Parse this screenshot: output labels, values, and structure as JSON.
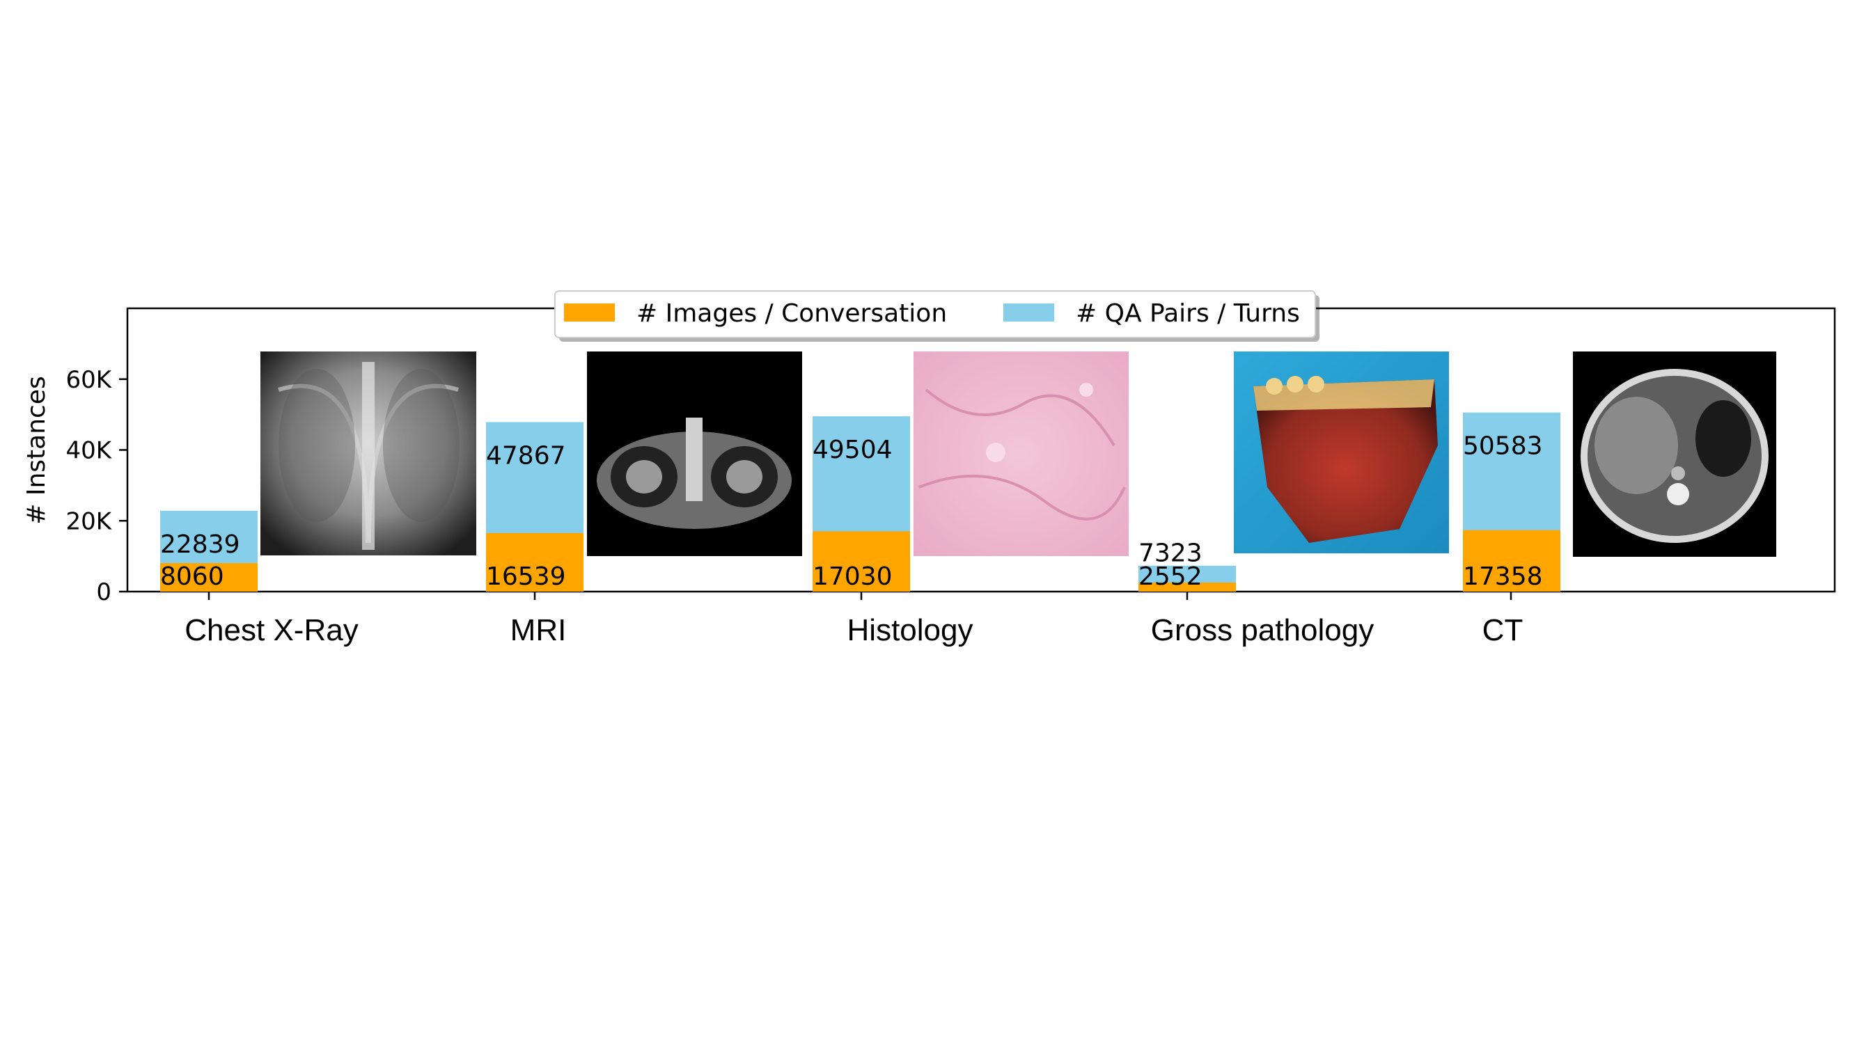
{
  "chart_data": {
    "type": "bar",
    "stacked": false,
    "categories": [
      "Chest X-Ray",
      "MRI",
      "Histology",
      "Gross pathology",
      "CT"
    ],
    "series": [
      {
        "name": "# Images / Conversation",
        "color": "#FFA500",
        "values": [
          8060,
          16539,
          17030,
          2552,
          17358
        ]
      },
      {
        "name": "# QA Pairs / Turns",
        "color": "#87CEEB",
        "values": [
          22839,
          47867,
          49504,
          7323,
          50583
        ]
      }
    ],
    "xlabel": "",
    "ylabel": "# Instances",
    "ylim": [
      0,
      80000
    ],
    "yticks": [
      0,
      20000,
      40000,
      60000
    ],
    "ytick_labels": [
      "0",
      "20K",
      "40K",
      "60K"
    ],
    "legend_placement": "top-center",
    "grid": false,
    "thumbnails": [
      "chest-xray-image",
      "mri-image",
      "histology-image",
      "gross-pathology-image",
      "ct-image"
    ]
  }
}
